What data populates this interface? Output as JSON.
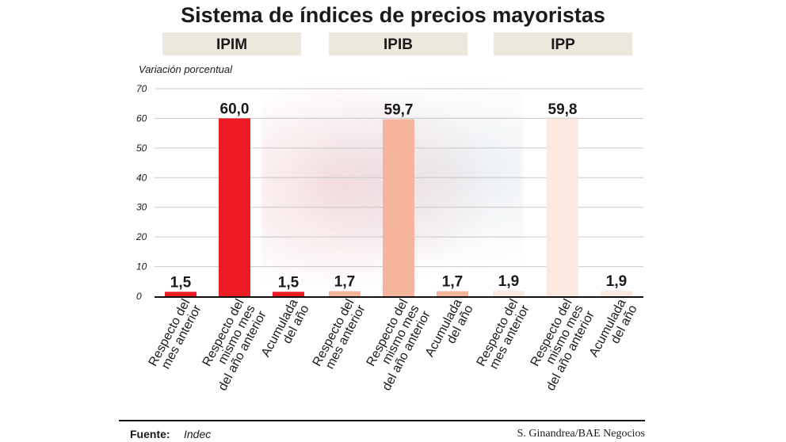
{
  "title": "Sistema de índices de precios mayoristas",
  "ylabel": "Variación porcentual",
  "source_label": "Fuente:",
  "source_value": "Indec",
  "credit": "S. Ginandrea/BAE Negocios",
  "colors": {
    "ipim": "#ed1c24",
    "ipib": "#f5b49e",
    "ipp": "#fce9e0",
    "header_bg": "#ece8dc"
  },
  "chart_data": {
    "type": "bar",
    "title": "Sistema de índices de precios mayoristas",
    "ylabel": "Variación porcentual",
    "xlabel": "",
    "ylim": [
      0,
      70
    ],
    "yticks": [
      0,
      10,
      20,
      30,
      40,
      50,
      60,
      70
    ],
    "grid": true,
    "groups": [
      {
        "name": "IPIM",
        "color": "#ed1c24",
        "categories": [
          [
            "Respecto del",
            "mes anterior"
          ],
          [
            "Respecto del",
            "mismo mes",
            "del año anterior"
          ],
          [
            "Acumulada",
            "del año"
          ]
        ],
        "values": [
          1.5,
          60.0,
          1.5
        ],
        "labels": [
          "1,5",
          "60,0",
          "1,5"
        ]
      },
      {
        "name": "IPIB",
        "color": "#f5b49e",
        "categories": [
          [
            "Respecto del",
            "mes anterior"
          ],
          [
            "Respecto del",
            "mismo mes",
            "del año anterior"
          ],
          [
            "Acumulada",
            "del año"
          ]
        ],
        "values": [
          1.7,
          59.7,
          1.7
        ],
        "labels": [
          "1,7",
          "59,7",
          "1,7"
        ]
      },
      {
        "name": "IPP",
        "color": "#fce9e0",
        "categories": [
          [
            "Respecto del",
            "mes anterior"
          ],
          [
            "Respecto del",
            "mismo mes",
            "del año anterior"
          ],
          [
            "Acumulada",
            "del año"
          ]
        ],
        "values": [
          1.9,
          59.8,
          1.9
        ],
        "labels": [
          "1,9",
          "59,8",
          "1,9"
        ]
      }
    ]
  }
}
